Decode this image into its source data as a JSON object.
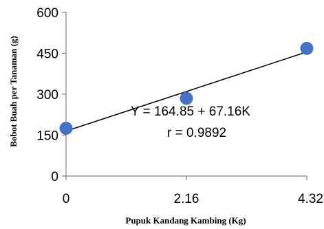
{
  "chart_data": {
    "type": "scatter",
    "title": "",
    "xlabel": "Pupuk Kandang Kambing (Kg)",
    "ylabel": "Bobot Buah per Tanaman (g)",
    "xlim": [
      0,
      4.32
    ],
    "ylim": [
      0,
      600
    ],
    "xticks": [
      "0",
      "2.16",
      "4.32"
    ],
    "yticks": [
      "0",
      "150",
      "300",
      "450",
      "600"
    ],
    "grid": false,
    "legend": "none",
    "point_color": "#4472C4",
    "line_color": "#000000",
    "series": [
      {
        "points": [
          {
            "x": 0,
            "y": 175
          },
          {
            "x": 2.16,
            "y": 285
          },
          {
            "x": 4.32,
            "y": 468
          }
        ]
      }
    ],
    "trendline": {
      "intercept": 164.85,
      "slope": 67.16
    },
    "annotations": [
      "Y =  164.85 + 67.16K",
      "r = 0.9892"
    ]
  }
}
